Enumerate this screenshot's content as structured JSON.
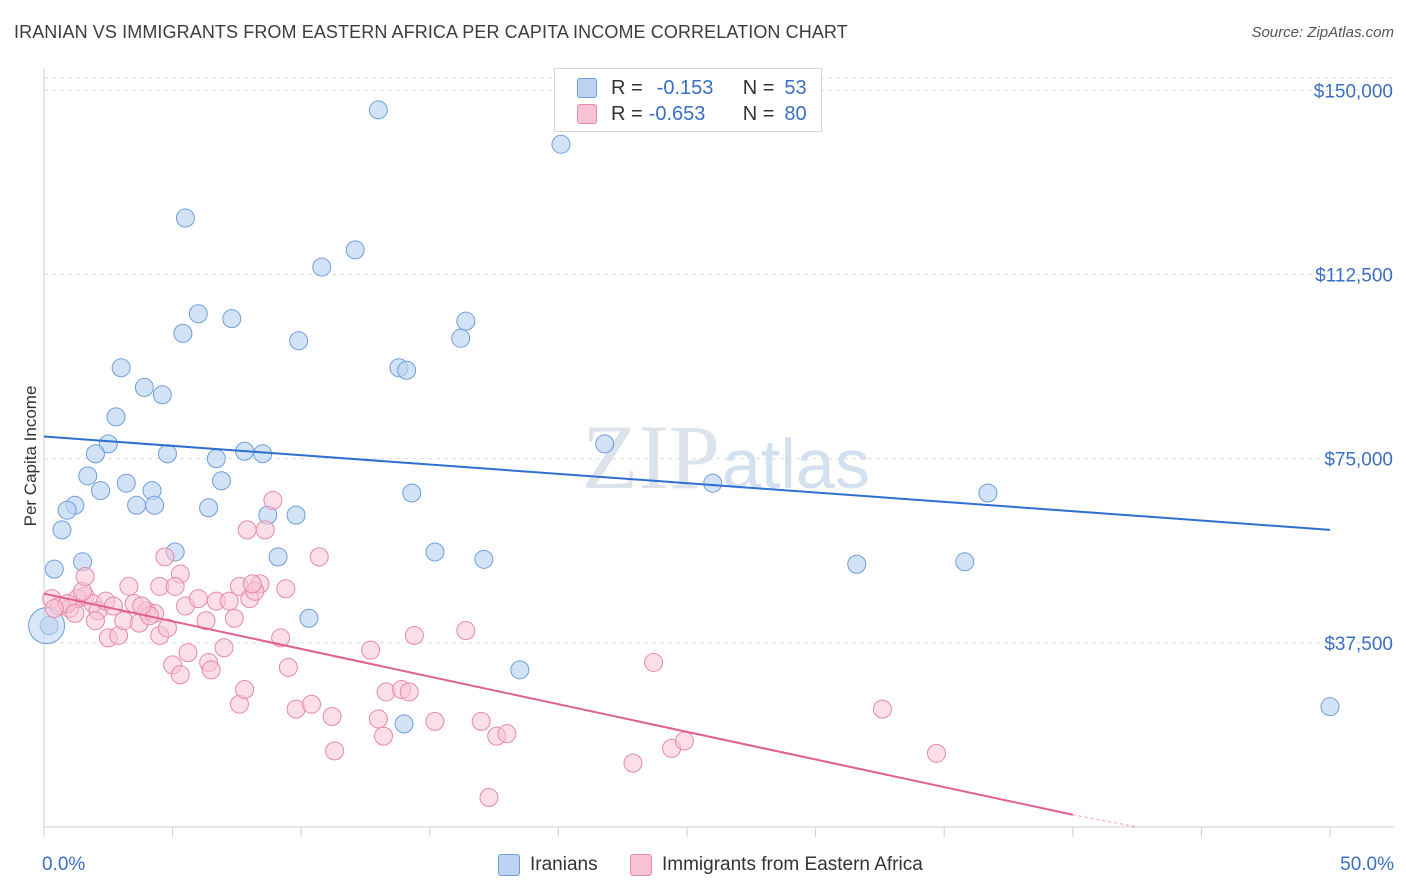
{
  "header": {
    "title": "IRANIAN VS IMMIGRANTS FROM EASTERN AFRICA PER CAPITA INCOME CORRELATION CHART",
    "source": "Source: ZipAtlas.com"
  },
  "watermark": {
    "part1": "ZIP",
    "part2": "atlas"
  },
  "colors": {
    "blue_fill": "#bcd4f2",
    "blue_stroke": "#6f9fdb",
    "blue_line": "#2f6fd0",
    "pink_fill": "#f7c3d3",
    "pink_stroke": "#e889a8",
    "pink_line": "#e06090",
    "tick_label": "#3a6fc4"
  },
  "legend": {
    "rows": [
      {
        "r_label": "R =",
        "r_value": "-0.153",
        "n_label": "N =",
        "n_value": "53"
      },
      {
        "r_label": "R =",
        "r_value": "-0.653",
        "n_label": "N =",
        "n_value": "80"
      }
    ]
  },
  "bottom_legend": {
    "series1": "Iranians",
    "series2": "Immigrants from Eastern Africa"
  },
  "chart_data": {
    "type": "scatter",
    "title": "IRANIAN VS IMMIGRANTS FROM EASTERN AFRICA PER CAPITA INCOME CORRELATION CHART",
    "xlabel": "",
    "ylabel": "Per Capita Income",
    "xlim": [
      0,
      50
    ],
    "ylim": [
      0,
      152500
    ],
    "x_tick_labels": [
      "0.0%",
      "50.0%"
    ],
    "y_ticks": [
      37500,
      75000,
      112500,
      150000
    ],
    "y_tick_labels": [
      "$37,500",
      "$75,000",
      "$112,500",
      "$150,000"
    ],
    "series": [
      {
        "name": "Iranians",
        "r": -0.153,
        "n": 53,
        "trend": {
          "x": [
            0,
            50
          ],
          "y": [
            79500,
            60500
          ]
        },
        "points": [
          [
            13.0,
            146000
          ],
          [
            20.1,
            139000
          ],
          [
            5.5,
            124000
          ],
          [
            12.1,
            117500
          ],
          [
            10.8,
            114000
          ],
          [
            6.0,
            104500
          ],
          [
            7.3,
            103500
          ],
          [
            16.4,
            103000
          ],
          [
            5.4,
            100500
          ],
          [
            9.9,
            99000
          ],
          [
            16.2,
            99500
          ],
          [
            3.0,
            93500
          ],
          [
            13.8,
            93500
          ],
          [
            14.1,
            93000
          ],
          [
            3.9,
            89500
          ],
          [
            4.6,
            88000
          ],
          [
            2.8,
            83500
          ],
          [
            2.5,
            78000
          ],
          [
            21.8,
            78000
          ],
          [
            2.0,
            76000
          ],
          [
            4.8,
            76000
          ],
          [
            7.8,
            76500
          ],
          [
            8.5,
            76000
          ],
          [
            6.7,
            75000
          ],
          [
            1.7,
            71500
          ],
          [
            6.9,
            70500
          ],
          [
            3.2,
            70000
          ],
          [
            26.0,
            70000
          ],
          [
            2.2,
            68500
          ],
          [
            4.2,
            68500
          ],
          [
            14.3,
            68000
          ],
          [
            36.7,
            68000
          ],
          [
            1.2,
            65500
          ],
          [
            0.9,
            64500
          ],
          [
            3.6,
            65500
          ],
          [
            4.3,
            65500
          ],
          [
            6.4,
            65000
          ],
          [
            8.7,
            63500
          ],
          [
            9.8,
            63500
          ],
          [
            0.7,
            60500
          ],
          [
            5.1,
            56000
          ],
          [
            15.2,
            56000
          ],
          [
            9.1,
            55000
          ],
          [
            1.5,
            54000
          ],
          [
            17.1,
            54500
          ],
          [
            31.6,
            53500
          ],
          [
            35.8,
            54000
          ],
          [
            0.4,
            52500
          ],
          [
            10.3,
            42500
          ],
          [
            0.2,
            41000
          ],
          [
            18.5,
            32000
          ],
          [
            14.0,
            21000
          ],
          [
            50.0,
            24500
          ]
        ]
      },
      {
        "name": "Immigrants from Eastern Africa",
        "r": -0.653,
        "n": 80,
        "trend": {
          "x": [
            0,
            40
          ],
          "y": [
            47500,
            2500
          ]
        },
        "trend_dashed_to": {
          "x": 42.5,
          "y": 0
        },
        "points": [
          [
            0.3,
            46500
          ],
          [
            0.6,
            45000
          ],
          [
            1.0,
            44500
          ],
          [
            1.3,
            46500
          ],
          [
            1.6,
            47000
          ],
          [
            1.9,
            45500
          ],
          [
            2.1,
            44000
          ],
          [
            2.4,
            46000
          ],
          [
            2.7,
            45000
          ],
          [
            1.5,
            48000
          ],
          [
            1.6,
            51000
          ],
          [
            3.3,
            49000
          ],
          [
            4.5,
            49000
          ],
          [
            4.7,
            55000
          ],
          [
            5.3,
            51500
          ],
          [
            5.1,
            49000
          ],
          [
            3.5,
            45500
          ],
          [
            4.0,
            44000
          ],
          [
            4.3,
            43500
          ],
          [
            5.5,
            45000
          ],
          [
            6.0,
            46500
          ],
          [
            6.3,
            42000
          ],
          [
            6.7,
            46000
          ],
          [
            7.2,
            46000
          ],
          [
            7.4,
            42500
          ],
          [
            7.6,
            49000
          ],
          [
            8.0,
            46500
          ],
          [
            8.4,
            49500
          ],
          [
            8.2,
            48000
          ],
          [
            9.4,
            48500
          ],
          [
            2.5,
            38500
          ],
          [
            2.9,
            39000
          ],
          [
            3.1,
            42000
          ],
          [
            3.7,
            41500
          ],
          [
            4.1,
            43000
          ],
          [
            4.5,
            39000
          ],
          [
            4.8,
            40500
          ],
          [
            5.0,
            33000
          ],
          [
            5.3,
            31000
          ],
          [
            5.6,
            35500
          ],
          [
            6.4,
            33500
          ],
          [
            6.5,
            32000
          ],
          [
            7.0,
            36500
          ],
          [
            7.6,
            25000
          ],
          [
            7.8,
            28000
          ],
          [
            7.9,
            60500
          ],
          [
            8.6,
            60500
          ],
          [
            8.9,
            66500
          ],
          [
            9.2,
            38500
          ],
          [
            9.5,
            32500
          ],
          [
            9.8,
            24000
          ],
          [
            10.4,
            25000
          ],
          [
            10.7,
            55000
          ],
          [
            11.2,
            22500
          ],
          [
            12.7,
            36000
          ],
          [
            13.0,
            22000
          ],
          [
            13.2,
            18500
          ],
          [
            13.3,
            27500
          ],
          [
            13.9,
            28000
          ],
          [
            14.2,
            27500
          ],
          [
            14.4,
            39000
          ],
          [
            15.2,
            21500
          ],
          [
            16.4,
            40000
          ],
          [
            17.0,
            21500
          ],
          [
            17.6,
            18500
          ],
          [
            18.0,
            19000
          ],
          [
            17.3,
            6000
          ],
          [
            11.3,
            15500
          ],
          [
            8.1,
            49500
          ],
          [
            22.9,
            13000
          ],
          [
            23.7,
            33500
          ],
          [
            24.4,
            16000
          ],
          [
            24.9,
            17500
          ],
          [
            32.6,
            24000
          ],
          [
            34.7,
            15000
          ],
          [
            0.9,
            45500
          ],
          [
            2.0,
            42000
          ],
          [
            3.8,
            45000
          ],
          [
            1.2,
            43500
          ],
          [
            0.4,
            44500
          ]
        ]
      }
    ]
  }
}
